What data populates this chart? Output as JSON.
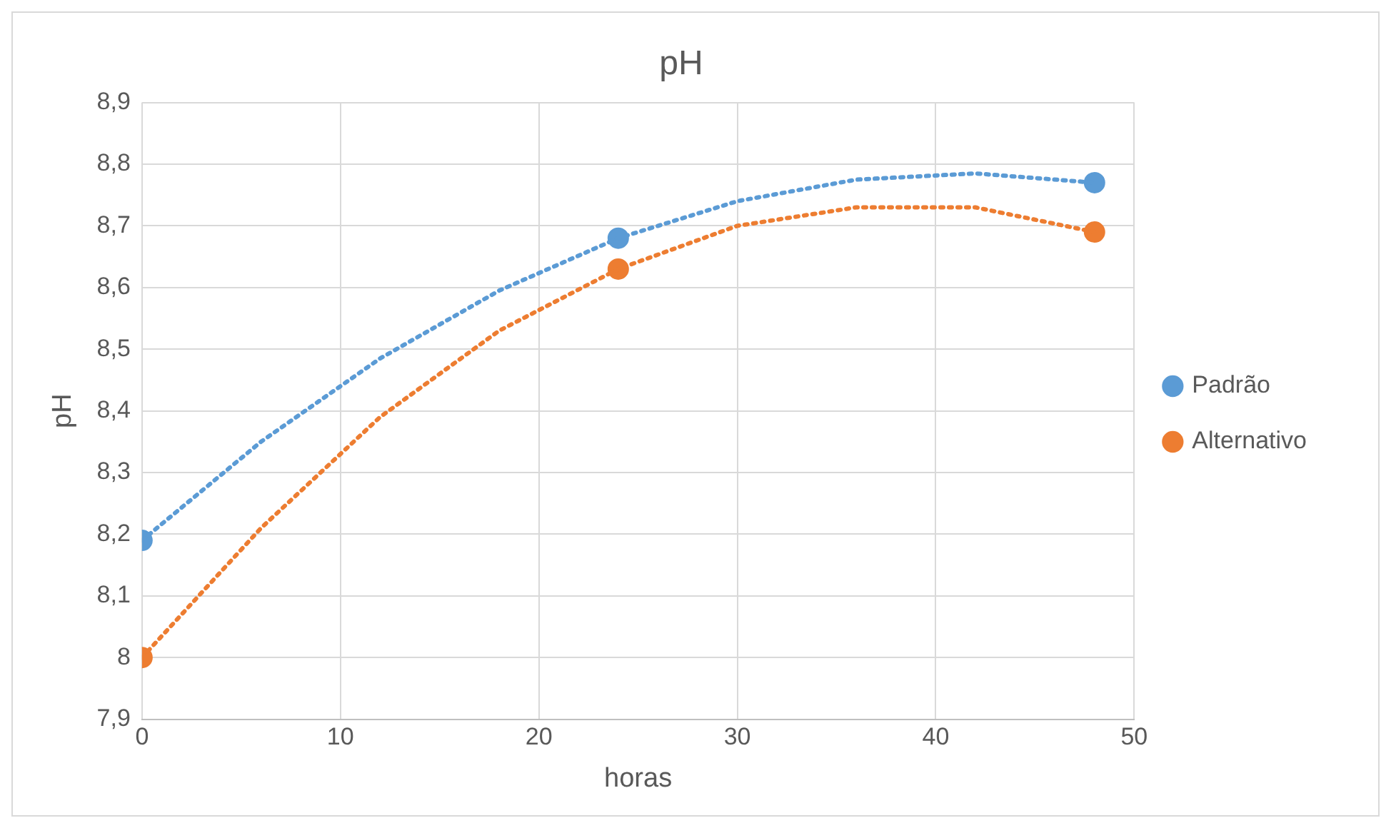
{
  "chart_data": {
    "type": "scatter",
    "title": "pH",
    "xlabel": "horas",
    "ylabel": "pH",
    "xlim": [
      0,
      50
    ],
    "xticks": [
      0,
      10,
      20,
      30,
      40,
      50
    ],
    "ylim": [
      7.9,
      8.9
    ],
    "yticks": [
      {
        "value": 7.9,
        "label": "7,9"
      },
      {
        "value": 8,
        "label": "8"
      },
      {
        "value": 8.1,
        "label": "8,1"
      },
      {
        "value": 8.2,
        "label": "8,2"
      },
      {
        "value": 8.3,
        "label": "8,3"
      },
      {
        "value": 8.4,
        "label": "8,4"
      },
      {
        "value": 8.5,
        "label": "8,5"
      },
      {
        "value": 8.6,
        "label": "8,6"
      },
      {
        "value": 8.7,
        "label": "8,7"
      },
      {
        "value": 8.8,
        "label": "8,8"
      },
      {
        "value": 8.9,
        "label": "8,9"
      }
    ],
    "grid": true,
    "legend": "right",
    "series": [
      {
        "name": "Padrão",
        "type": "scatter",
        "marker": "circle",
        "color": "#5b9bd5",
        "x": [
          0,
          24,
          48
        ],
        "values": [
          8.19,
          8.68,
          8.77
        ]
      },
      {
        "name": "Alternativo",
        "type": "scatter",
        "marker": "circle",
        "color": "#ed7d31",
        "x": [
          0,
          24,
          48
        ],
        "values": [
          8.0,
          8.63,
          8.69
        ]
      },
      {
        "type": "line",
        "marker": "none",
        "line_style": "dotted",
        "color": "#5b9bd5",
        "x": [
          0,
          6,
          12,
          18,
          24,
          30,
          36,
          42,
          48
        ],
        "values": [
          8.19,
          8.35,
          8.485,
          8.595,
          8.68,
          8.74,
          8.775,
          8.785,
          8.77
        ]
      },
      {
        "type": "line",
        "marker": "none",
        "line_style": "dotted",
        "color": "#ed7d31",
        "x": [
          0,
          6,
          12,
          18,
          24,
          30,
          36,
          42,
          48
        ],
        "values": [
          8.0,
          8.21,
          8.39,
          8.53,
          8.63,
          8.7,
          8.73,
          8.73,
          8.69
        ]
      }
    ]
  }
}
